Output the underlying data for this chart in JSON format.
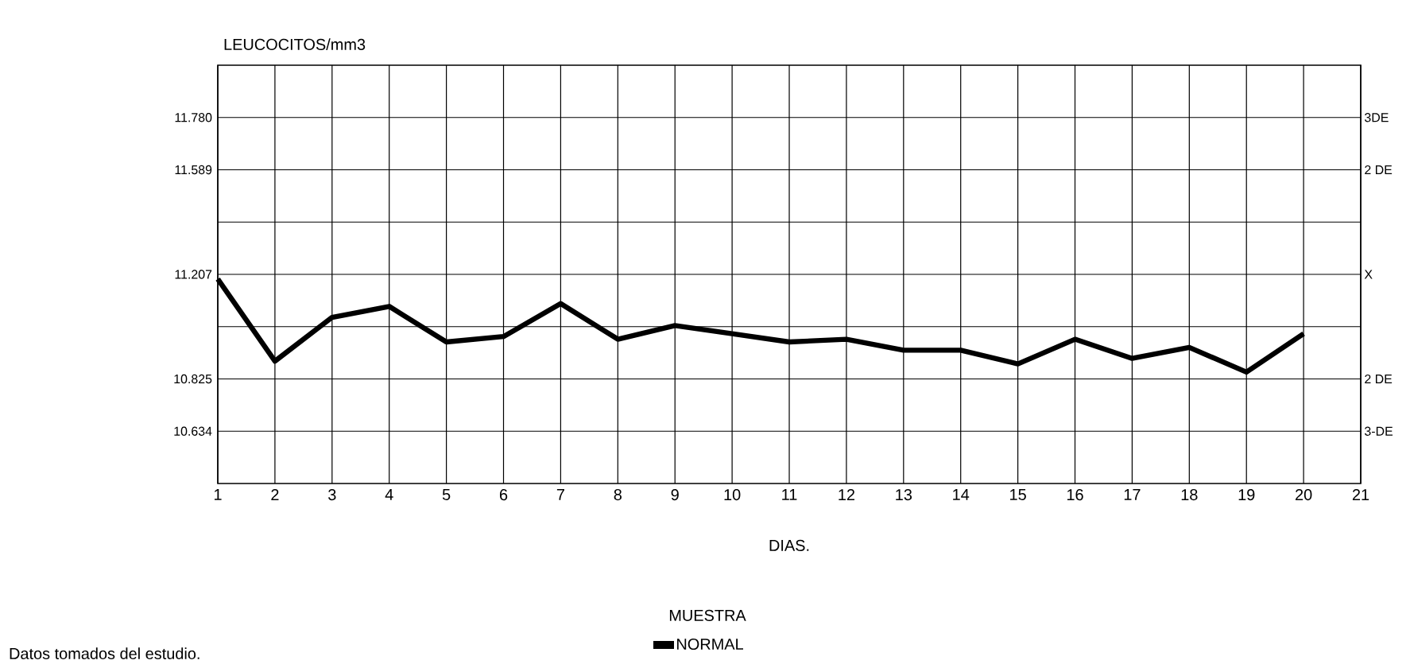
{
  "chart_data": {
    "type": "line",
    "ylabel": "LEUCOCITOS/mm3",
    "xlabel": "DIAS.",
    "legend_title": "MUESTRA",
    "legend": "bottom",
    "grid": "x",
    "marker": "none",
    "line_style": "solid",
    "x": [
      1,
      2,
      3,
      4,
      5,
      6,
      7,
      8,
      9,
      10,
      11,
      12,
      13,
      14,
      15,
      16,
      17,
      18,
      19,
      20
    ],
    "series": [
      {
        "name": "NORMAL",
        "color": "#000000",
        "values": [
          11.19,
          10.89,
          11.05,
          11.09,
          10.96,
          10.98,
          11.1,
          10.97,
          11.02,
          10.99,
          10.96,
          10.97,
          10.93,
          10.93,
          10.88,
          10.97,
          10.9,
          10.94,
          10.85,
          10.99
        ]
      }
    ],
    "xlim": [
      1,
      21
    ],
    "xticks": [
      1,
      2,
      3,
      4,
      5,
      6,
      7,
      8,
      9,
      10,
      11,
      12,
      13,
      14,
      15,
      16,
      17,
      18,
      19,
      20,
      21
    ],
    "ylim": [
      10.443,
      11.971
    ],
    "yticks": [
      {
        "value": 10.634,
        "label": "10.634"
      },
      {
        "value": 10.825,
        "label": "10.825"
      },
      {
        "value": 11.016,
        "label": null
      },
      {
        "value": 11.207,
        "label": "11.207"
      },
      {
        "value": 11.398,
        "label": null
      },
      {
        "value": 11.589,
        "label": "11.589"
      },
      {
        "value": 11.78,
        "label": "11.780"
      }
    ],
    "ref_lines": [
      {
        "axis": "y",
        "value": 10.634,
        "label": "3-DE"
      },
      {
        "axis": "y",
        "value": 10.825,
        "label": "2 DE"
      },
      {
        "axis": "y",
        "value": 11.016
      },
      {
        "axis": "y",
        "value": 11.207,
        "label": "X"
      },
      {
        "axis": "y",
        "value": 11.398
      },
      {
        "axis": "y",
        "value": 11.589,
        "label": "2 DE"
      },
      {
        "axis": "y",
        "value": 11.78,
        "label": "3DE"
      }
    ],
    "annotations": [
      "Datos tomados del estudio."
    ]
  }
}
